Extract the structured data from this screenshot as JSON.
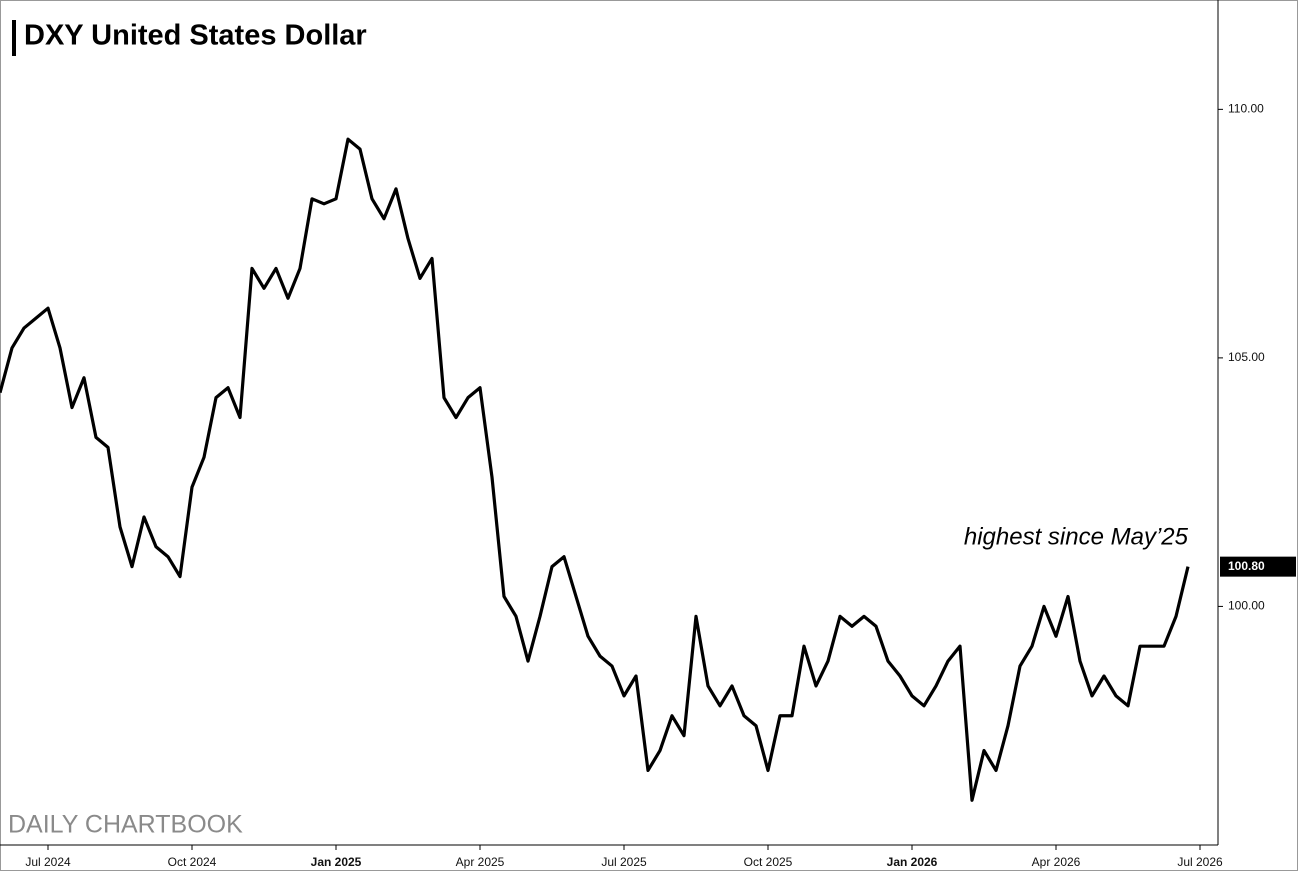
{
  "chart_data": {
    "type": "line",
    "title": "DXY United States Dollar",
    "annotation": "highest since May’25",
    "watermark": "DAILY CHARTBOOK",
    "categories": [
      null,
      null,
      null,
      null,
      "Jul 2024",
      null,
      null,
      null,
      null,
      null,
      null,
      null,
      null,
      null,
      null,
      null,
      "Oct 2024",
      null,
      null,
      null,
      null,
      null,
      null,
      null,
      null,
      null,
      null,
      null,
      "Jan 2025",
      null,
      null,
      null,
      null,
      null,
      null,
      null,
      null,
      null,
      null,
      null,
      "Apr 2025",
      null,
      null,
      null,
      null,
      null,
      null,
      null,
      null,
      null,
      null,
      null,
      "Jul 2025",
      null,
      null,
      null,
      null,
      null,
      null,
      null,
      null,
      null,
      null,
      null,
      "Oct 2025",
      null,
      null,
      null,
      null,
      null,
      null,
      null,
      null,
      null,
      null,
      null,
      "Jan 2026",
      null,
      null,
      null,
      null,
      null,
      null,
      null,
      null,
      null,
      null,
      null,
      "Apr 2026",
      null,
      null,
      null,
      null,
      null,
      null,
      null,
      null,
      null,
      null,
      null,
      "Jul 2026"
    ],
    "values": [
      104.3,
      105.2,
      105.6,
      105.8,
      106.0,
      105.2,
      104.0,
      104.6,
      103.4,
      103.2,
      101.6,
      100.8,
      101.8,
      101.2,
      101.0,
      100.6,
      102.4,
      103.0,
      104.2,
      104.4,
      103.8,
      106.8,
      106.4,
      106.8,
      106.2,
      106.8,
      108.2,
      108.1,
      108.2,
      109.4,
      109.2,
      108.2,
      107.8,
      108.4,
      107.4,
      106.6,
      107.0,
      104.2,
      103.8,
      104.2,
      104.4,
      102.6,
      100.2,
      99.8,
      98.9,
      99.8,
      100.8,
      101.0,
      100.2,
      99.4,
      99.0,
      98.8,
      98.2,
      98.6,
      96.7,
      97.1,
      97.8,
      97.4,
      99.8,
      98.4,
      98.0,
      98.4,
      97.8,
      97.6,
      96.7,
      97.8,
      97.8,
      99.2,
      98.4,
      98.9,
      99.8,
      99.6,
      99.8,
      99.6,
      98.9,
      98.6,
      98.2,
      98.0,
      98.4,
      98.9,
      99.2,
      96.1,
      97.1,
      96.7,
      97.6,
      98.8,
      99.2,
      100.0,
      99.4,
      100.2,
      98.9,
      98.2,
      98.6,
      98.2,
      98.0,
      99.2,
      99.2,
      99.2,
      99.8,
      100.8,
      null
    ],
    "value_labels": [
      null,
      null,
      null,
      null,
      null,
      null,
      null,
      null,
      null,
      null,
      null,
      null,
      null,
      null,
      null,
      null,
      null,
      null,
      null,
      null,
      null,
      null,
      null,
      null,
      null,
      null,
      null,
      null,
      null,
      null,
      null,
      null,
      null,
      null,
      null,
      null,
      null,
      null,
      null,
      null,
      null,
      null,
      null,
      null,
      null,
      null,
      null,
      null,
      null,
      null,
      null,
      null,
      null,
      null,
      null,
      null,
      null,
      null,
      null,
      null,
      null,
      null,
      null,
      null,
      null,
      null,
      null,
      null,
      null,
      null,
      null,
      null,
      null,
      null,
      null,
      null,
      null,
      null,
      null,
      null,
      null,
      null,
      null,
      null,
      null,
      null,
      null,
      null,
      null,
      null,
      null,
      null,
      null,
      null,
      null,
      null,
      null,
      null,
      null,
      "100.80",
      null
    ],
    "color": "#000000",
    "ylim": [
      95.2,
      112.2
    ],
    "yticks": [
      {
        "value": 100,
        "label": "100.00"
      },
      {
        "value": 105,
        "label": "105.00"
      },
      {
        "value": 110,
        "label": "110.00"
      }
    ],
    "grid": false
  }
}
